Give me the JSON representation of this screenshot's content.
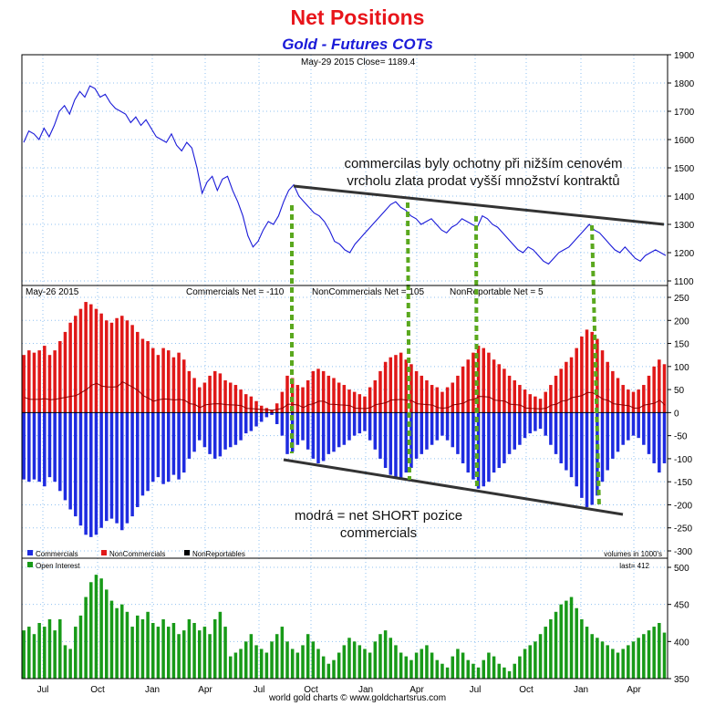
{
  "title": "Net Positions",
  "subtitle": "Gold - Futures COTs",
  "footer": "world gold charts © www.goldchartsrus.com",
  "annotations": {
    "top_line1": "commercilas byly ochotny při nižším cenovém",
    "top_line2": "vrcholu zlata prodat vyšší množství kontraktů",
    "bottom_line1": "modrá = net SHORT pozice",
    "bottom_line2": "commercials"
  },
  "colors": {
    "price": "#1a1ad8",
    "commercials": "#1e2be0",
    "noncommercials": "#e01818",
    "open_interest": "#189a18",
    "dotted": "#5aa81e"
  },
  "chart_data": [
    {
      "type": "line",
      "header": "May-29  2015   Close= 1189.4",
      "series": [
        {
          "values": [
            1590,
            1630,
            1620,
            1600,
            1640,
            1610,
            1650,
            1700,
            1720,
            1690,
            1740,
            1770,
            1750,
            1790,
            1780,
            1750,
            1760,
            1730,
            1710,
            1700,
            1690,
            1660,
            1680,
            1650,
            1670,
            1640,
            1610,
            1600,
            1590,
            1620,
            1580,
            1560,
            1590,
            1570,
            1500,
            1410,
            1450,
            1470,
            1420,
            1460,
            1470,
            1420,
            1380,
            1330,
            1260,
            1220,
            1240,
            1280,
            1310,
            1300,
            1330,
            1380,
            1420,
            1440,
            1400,
            1380,
            1360,
            1340,
            1330,
            1310,
            1280,
            1240,
            1230,
            1210,
            1200,
            1230,
            1250,
            1270,
            1290,
            1310,
            1330,
            1350,
            1370,
            1380,
            1360,
            1350,
            1330,
            1320,
            1300,
            1310,
            1320,
            1300,
            1280,
            1270,
            1290,
            1300,
            1320,
            1310,
            1300,
            1290,
            1330,
            1320,
            1300,
            1290,
            1270,
            1250,
            1230,
            1210,
            1200,
            1220,
            1210,
            1190,
            1170,
            1160,
            1180,
            1200,
            1210,
            1220,
            1240,
            1260,
            1280,
            1300,
            1280,
            1270,
            1250,
            1230,
            1210,
            1200,
            1220,
            1200,
            1180,
            1170,
            1190,
            1200,
            1210,
            1200,
            1190
          ]
        }
      ],
      "ylim": [
        1100,
        1900
      ],
      "yticks": [
        1100,
        1200,
        1300,
        1400,
        1500,
        1600,
        1700,
        1800,
        1900
      ]
    },
    {
      "type": "bar",
      "header_left": "May-26  2015",
      "header_items": [
        "Commercials Net = -110",
        "NonCommercials Net = 105",
        "NonReportable Net = 5"
      ],
      "legend": [
        "Commercials",
        "NonCommercials",
        "NonReportables"
      ],
      "note": "volumes in 1000's",
      "series": [
        {
          "name": "Commercials",
          "values": [
            -145,
            -150,
            -145,
            -150,
            -160,
            -140,
            -150,
            -170,
            -190,
            -210,
            -225,
            -245,
            -265,
            -270,
            -265,
            -250,
            -235,
            -230,
            -240,
            -255,
            -240,
            -225,
            -205,
            -180,
            -170,
            -150,
            -140,
            -155,
            -150,
            -135,
            -145,
            -130,
            -100,
            -85,
            -60,
            -75,
            -90,
            -100,
            -95,
            -80,
            -75,
            -70,
            -60,
            -45,
            -40,
            -30,
            -20,
            -10,
            -5,
            -25,
            -50,
            -90,
            -85,
            -70,
            -60,
            -80,
            -100,
            -110,
            -105,
            -90,
            -85,
            -75,
            -70,
            -60,
            -50,
            -45,
            -40,
            -60,
            -80,
            -100,
            -120,
            -135,
            -140,
            -145,
            -130,
            -120,
            -100,
            -90,
            -80,
            -70,
            -60,
            -50,
            -60,
            -75,
            -90,
            -110,
            -130,
            -145,
            -165,
            -160,
            -150,
            -130,
            -120,
            -110,
            -90,
            -80,
            -70,
            -55,
            -45,
            -40,
            -35,
            -50,
            -70,
            -90,
            -110,
            -125,
            -140,
            -160,
            -185,
            -205,
            -200,
            -180,
            -150,
            -125,
            -100,
            -85,
            -70,
            -60,
            -50,
            -55,
            -70,
            -90,
            -110,
            -130,
            -110
          ]
        },
        {
          "name": "NonCommercials",
          "values": [
            125,
            135,
            130,
            135,
            145,
            125,
            135,
            155,
            175,
            195,
            210,
            225,
            240,
            235,
            225,
            215,
            200,
            195,
            205,
            210,
            200,
            190,
            175,
            160,
            155,
            140,
            125,
            140,
            135,
            120,
            130,
            115,
            90,
            75,
            55,
            65,
            80,
            90,
            85,
            70,
            65,
            60,
            50,
            40,
            35,
            25,
            15,
            10,
            5,
            20,
            45,
            80,
            75,
            60,
            55,
            70,
            90,
            95,
            90,
            80,
            75,
            65,
            60,
            50,
            45,
            40,
            35,
            55,
            70,
            90,
            110,
            120,
            125,
            130,
            115,
            105,
            90,
            80,
            70,
            60,
            55,
            45,
            55,
            65,
            80,
            100,
            115,
            130,
            145,
            140,
            130,
            115,
            105,
            95,
            80,
            70,
            60,
            50,
            40,
            35,
            30,
            45,
            60,
            80,
            95,
            110,
            120,
            140,
            165,
            180,
            175,
            160,
            135,
            110,
            90,
            75,
            60,
            50,
            45,
            50,
            60,
            80,
            100,
            115,
            105
          ]
        }
      ],
      "ylim": [
        -300,
        250
      ],
      "yticks": [
        -300,
        -250,
        -200,
        -150,
        -100,
        -50,
        0,
        50,
        100,
        150,
        200,
        250
      ]
    },
    {
      "type": "bar",
      "legend": [
        "Open Interest"
      ],
      "note": "last= 412",
      "series": [
        {
          "name": "Open Interest",
          "values": [
            415,
            420,
            410,
            425,
            420,
            430,
            415,
            430,
            395,
            390,
            420,
            435,
            460,
            480,
            490,
            485,
            470,
            455,
            445,
            450,
            440,
            420,
            435,
            430,
            440,
            425,
            420,
            430,
            420,
            425,
            410,
            415,
            430,
            425,
            415,
            420,
            410,
            430,
            440,
            420,
            380,
            385,
            390,
            400,
            410,
            395,
            390,
            385,
            400,
            410,
            420,
            400,
            390,
            385,
            395,
            410,
            400,
            390,
            380,
            370,
            375,
            385,
            395,
            405,
            400,
            395,
            390,
            385,
            400,
            410,
            415,
            405,
            395,
            385,
            380,
            375,
            385,
            390,
            395,
            385,
            375,
            370,
            365,
            380,
            390,
            385,
            375,
            370,
            365,
            375,
            385,
            380,
            370,
            365,
            360,
            370,
            380,
            390,
            395,
            400,
            410,
            420,
            430,
            440,
            450,
            455,
            460,
            445,
            430,
            420,
            410,
            405,
            400,
            395,
            390,
            385,
            390,
            395,
            400,
            405,
            410,
            415,
            420,
            425,
            412
          ]
        }
      ],
      "ylim": [
        350,
        500
      ],
      "yticks": [
        350,
        400,
        450,
        500
      ]
    }
  ],
  "x_axis": {
    "labels": [
      "Jul",
      "Oct",
      "Jan",
      "Apr",
      "Jul",
      "Oct",
      "Jan",
      "Apr",
      "Jul",
      "Oct",
      "Jan",
      "Apr"
    ]
  }
}
